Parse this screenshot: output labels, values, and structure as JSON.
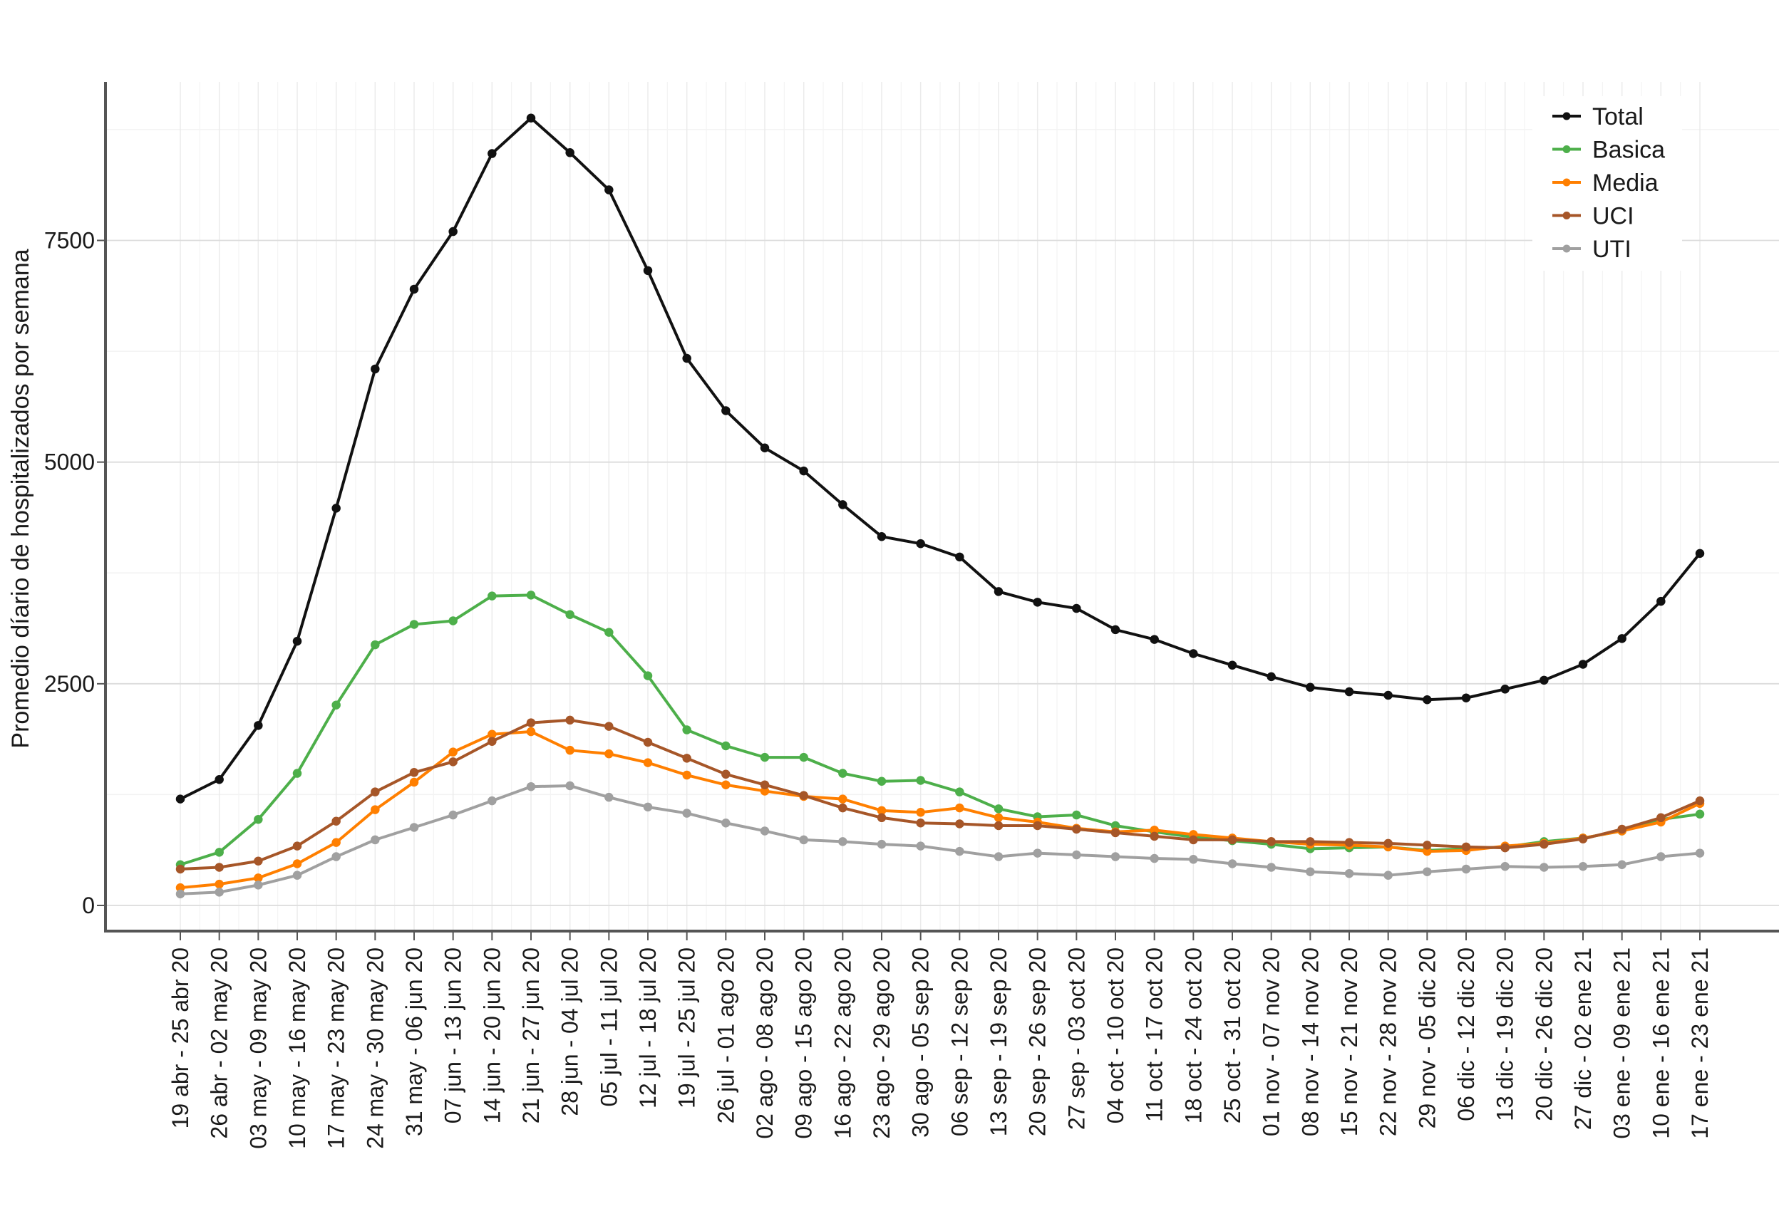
{
  "chart_data": {
    "type": "line",
    "title": "",
    "xlabel": "",
    "ylabel": "Promedio díario de hospitalizados por semana",
    "ylim": [
      -250,
      9300
    ],
    "y_ticks": [
      0,
      2500,
      5000,
      7500
    ],
    "grid": true,
    "legend_position": "top-right",
    "categories": [
      "19 abr - 25 abr 20",
      "26 abr - 02 may 20",
      "03 may - 09 may 20",
      "10 may - 16 may 20",
      "17 may - 23 may 20",
      "24 may - 30 may 20",
      "31 may - 06 jun 20",
      "07 jun - 13 jun 20",
      "14 jun - 20 jun 20",
      "21 jun - 27 jun 20",
      "28 jun - 04 jul 20",
      "05 jul - 11 jul 20",
      "12 jul - 18 jul 20",
      "19 jul - 25 jul 20",
      "26 jul - 01 ago 20",
      "02 ago - 08 ago 20",
      "09 ago - 15 ago 20",
      "16 ago - 22 ago 20",
      "23 ago - 29 ago 20",
      "30 ago - 05 sep 20",
      "06 sep - 12 sep 20",
      "13 sep - 19 sep 20",
      "20 sep - 26 sep 20",
      "27 sep - 03 oct 20",
      "04 oct - 10 oct 20",
      "11 oct - 17 oct 20",
      "18 oct - 24 oct 20",
      "25 oct - 31 oct 20",
      "01 nov - 07 nov 20",
      "08 nov - 14 nov 20",
      "15 nov - 21 nov 20",
      "22 nov - 28 nov 20",
      "29 nov - 05 dic 20",
      "06 dic - 12 dic 20",
      "13 dic - 19 dic 20",
      "20 dic - 26 dic 20",
      "27 dic - 02 ene 21",
      "03 ene - 09 ene 21",
      "10 ene - 16 ene 21",
      "17 ene - 23 ene 21"
    ],
    "series": [
      {
        "name": "Total",
        "color": "#111111",
        "values": [
          1200,
          1420,
          2030,
          2980,
          4480,
          6050,
          6950,
          7600,
          8480,
          8880,
          8490,
          8070,
          7160,
          6170,
          5580,
          5160,
          4900,
          4520,
          4160,
          4080,
          3930,
          3540,
          3420,
          3350,
          3110,
          3000,
          2840,
          2710,
          2580,
          2460,
          2410,
          2370,
          2320,
          2340,
          2440,
          2540,
          2720,
          3010,
          3430,
          3970
        ]
      },
      {
        "name": "Basica",
        "color": "#4daf4a",
        "values": [
          460,
          600,
          970,
          1490,
          2260,
          2940,
          3170,
          3210,
          3490,
          3500,
          3280,
          3080,
          2590,
          1980,
          1800,
          1670,
          1670,
          1490,
          1400,
          1410,
          1280,
          1090,
          1000,
          1020,
          900,
          830,
          770,
          730,
          690,
          640,
          650,
          660,
          620,
          640,
          660,
          720,
          760,
          840,
          970,
          1030
        ]
      },
      {
        "name": "Media",
        "color": "#ff7f00",
        "values": [
          200,
          240,
          310,
          470,
          710,
          1080,
          1390,
          1730,
          1930,
          1960,
          1750,
          1710,
          1610,
          1470,
          1360,
          1290,
          1230,
          1200,
          1070,
          1050,
          1100,
          990,
          940,
          870,
          830,
          850,
          800,
          760,
          720,
          690,
          680,
          660,
          610,
          620,
          670,
          700,
          760,
          840,
          940,
          1150
        ]
      },
      {
        "name": "UCI",
        "color": "#a65628",
        "values": [
          410,
          430,
          500,
          670,
          950,
          1280,
          1500,
          1620,
          1850,
          2060,
          2090,
          2020,
          1840,
          1660,
          1480,
          1360,
          1240,
          1100,
          990,
          930,
          920,
          900,
          900,
          860,
          820,
          780,
          740,
          740,
          720,
          720,
          710,
          700,
          680,
          660,
          650,
          690,
          750,
          860,
          990,
          1180
        ]
      },
      {
        "name": "UTI",
        "color": "#a0a0a0",
        "values": [
          130,
          150,
          230,
          340,
          550,
          740,
          880,
          1020,
          1180,
          1340,
          1350,
          1220,
          1110,
          1040,
          930,
          840,
          740,
          720,
          690,
          670,
          610,
          550,
          590,
          570,
          550,
          530,
          520,
          470,
          430,
          380,
          360,
          340,
          380,
          410,
          440,
          430,
          440,
          460,
          550,
          590
        ]
      }
    ]
  }
}
